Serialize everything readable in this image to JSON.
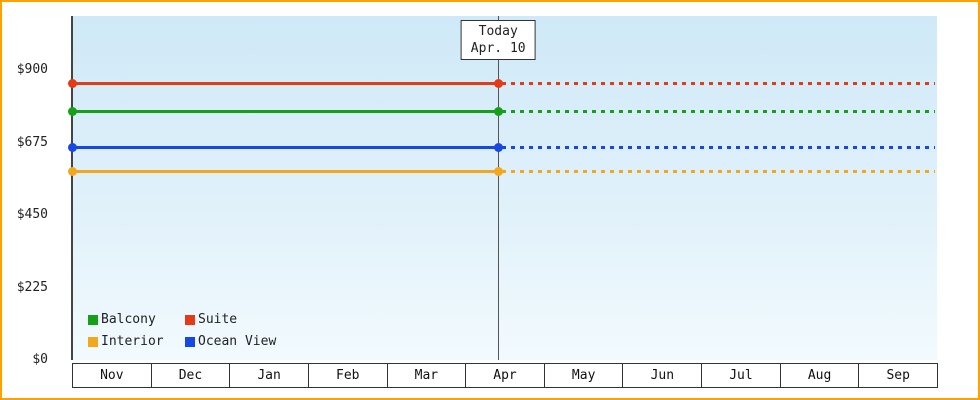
{
  "chart_data": {
    "type": "line",
    "title": "",
    "x_categories": [
      "Nov",
      "Dec",
      "Jan",
      "Feb",
      "Mar",
      "Apr",
      "May",
      "Jun",
      "Jul",
      "Aug",
      "Sep"
    ],
    "y_ticks": [
      {
        "value": 0,
        "label": "$0"
      },
      {
        "value": 225,
        "label": "$225"
      },
      {
        "value": 450,
        "label": "$450"
      },
      {
        "value": 675,
        "label": "$675"
      },
      {
        "value": 900,
        "label": "$900"
      }
    ],
    "ylim": [
      0,
      1068
    ],
    "grid": false,
    "legend_position": "bottom-left-inside",
    "today": {
      "line1": "Today",
      "line2": "Apr. 10",
      "month_index": 5,
      "month_fraction": 0.42
    },
    "series": [
      {
        "name": "Suite",
        "color": "#e63a17",
        "value": 858,
        "style": "solid-then-dotted"
      },
      {
        "name": "Balcony",
        "color": "#15a115",
        "value": 772,
        "style": "solid-then-dotted"
      },
      {
        "name": "Ocean View",
        "color": "#1747e6",
        "value": 660,
        "style": "solid-then-dotted"
      },
      {
        "name": "Interior",
        "color": "#f4a71c",
        "value": 585,
        "style": "solid-then-dotted"
      }
    ],
    "legend_rows": [
      [
        "Balcony",
        "Suite"
      ],
      [
        "Interior",
        "Ocean View"
      ]
    ],
    "axis_color": "#444444",
    "frame_border_color": "#ffa200"
  }
}
